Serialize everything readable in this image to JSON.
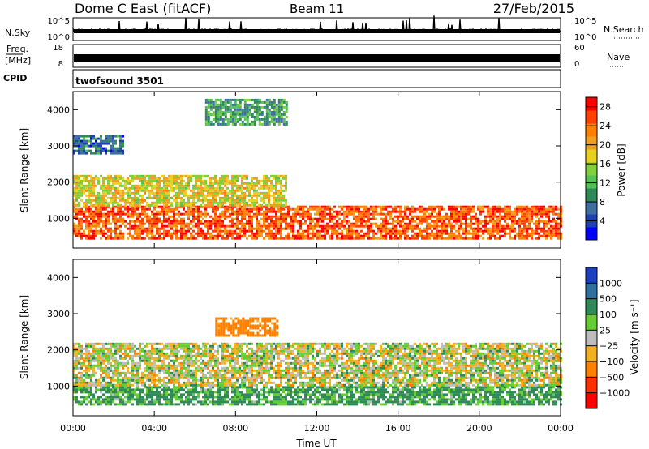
{
  "header": {
    "station": "Dome C East (fitACF)",
    "beam": "Beam 11",
    "date": "27/Feb/2015"
  },
  "strips": {
    "nsky": {
      "label": "N.Sky",
      "ticks": [
        "10^5",
        "10^0"
      ],
      "right_label": "N.Search",
      "right_ticks": [
        "10^5",
        "10^0"
      ]
    },
    "freq": {
      "label_top": "Freq.",
      "label_bottom": "[MHz]",
      "ticks": [
        "18",
        "8"
      ],
      "right_label": "Nave",
      "right_ticks": [
        "60",
        "0"
      ]
    },
    "cpid": {
      "label": "CPID",
      "value": "twofsound 3501"
    }
  },
  "panels": {
    "ylabel": "Slant Range [km]",
    "y_ticks": [
      "1000",
      "2000",
      "3000",
      "4000"
    ],
    "x_ticks": [
      "00:00",
      "04:00",
      "08:00",
      "12:00",
      "16:00",
      "20:00",
      "00:00"
    ],
    "xlabel": "Time UT",
    "power_colorbar": {
      "label": "Power [dB]",
      "ticks": [
        "4",
        "8",
        "12",
        "16",
        "20",
        "24",
        "28"
      ]
    },
    "velocity_colorbar": {
      "label": "Velocity [m s⁻¹]",
      "ticks": [
        "1000",
        "500",
        "100",
        "25",
        "−25",
        "−100",
        "−500",
        "−1000"
      ]
    }
  },
  "chart_data": [
    {
      "type": "heatmap",
      "title": "Power",
      "xlabel": "Time UT",
      "ylabel": "Slant Range [km]",
      "xlim": [
        0,
        24
      ],
      "ylim": [
        180,
        4500
      ],
      "x_unit": "hours UT",
      "colorbar": {
        "label": "Power [dB]",
        "range": [
          0,
          30
        ],
        "ticks": [
          4,
          8,
          12,
          16,
          20,
          24,
          28
        ]
      },
      "bands": [
        {
          "range_km": [
            450,
            1350
          ],
          "hours": [
            0,
            24
          ],
          "value_db": 26
        },
        {
          "range_km": [
            1350,
            2200
          ],
          "hours": [
            0,
            10.5
          ],
          "value_db": 18
        },
        {
          "range_km": [
            2800,
            3300
          ],
          "hours": [
            0,
            2.5
          ],
          "value_db": 6
        },
        {
          "range_km": [
            3600,
            4300
          ],
          "hours": [
            6.5,
            10.5
          ],
          "value_db": 10
        }
      ]
    },
    {
      "type": "heatmap",
      "title": "Velocity",
      "xlabel": "Time UT",
      "ylabel": "Slant Range [km]",
      "xlim": [
        0,
        24
      ],
      "ylim": [
        180,
        4500
      ],
      "x_unit": "hours UT",
      "colorbar": {
        "label": "Velocity [m s⁻¹]",
        "ticks": [
          1000,
          500,
          100,
          25,
          -25,
          -100,
          -500,
          -1000
        ]
      },
      "bands": [
        {
          "range_km": [
            500,
            1000
          ],
          "hours": [
            0,
            24
          ],
          "value_ms": 150
        },
        {
          "range_km": [
            1000,
            2200
          ],
          "hours": [
            0,
            24
          ],
          "value_ms": 0
        },
        {
          "range_km": [
            2400,
            2900
          ],
          "hours": [
            7,
            10
          ],
          "value_ms": -200
        }
      ]
    }
  ],
  "colors": {
    "power_scale": [
      "#0000ff",
      "#2040b0",
      "#3f6fa0",
      "#2e8b57",
      "#55c255",
      "#7fd03a",
      "#e8d020",
      "#f0a020",
      "#ff7f00",
      "#ff4000",
      "#ff0000"
    ],
    "velocity_scale": [
      "#1a3fbf",
      "#2f6f9f",
      "#2e8b57",
      "#66cc33",
      "#bdbdbd",
      "#f0b020",
      "#ff7f00",
      "#ff3000",
      "#ff0000"
    ]
  }
}
